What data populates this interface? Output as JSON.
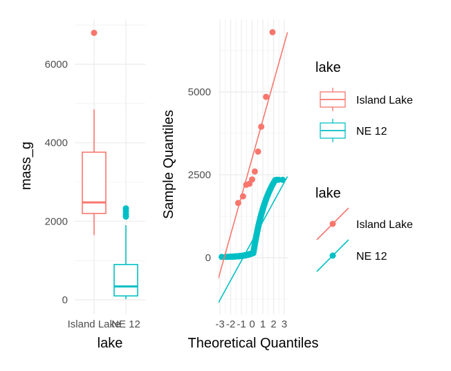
{
  "colors": {
    "island_lake": "#F8766D",
    "ne12": "#00BFC4",
    "grid": "#ebebeb"
  },
  "chart_data": [
    {
      "type": "box",
      "xlabel": "lake",
      "ylabel": "mass_g",
      "categories": [
        "Island Lake",
        "NE 12"
      ],
      "ylim": [
        -250,
        7100
      ],
      "yticks": [
        0,
        2000,
        4000,
        6000
      ],
      "yticklabels": [
        "0",
        "2000",
        "4000",
        "6000"
      ],
      "grid": true,
      "boxes": [
        {
          "category": "Island Lake",
          "min": 1650,
          "q1": 2200,
          "median": 2480,
          "q3": 3760,
          "max": 4850,
          "outliers": [
            6800
          ]
        },
        {
          "category": "NE 12",
          "min": 20,
          "q1": 100,
          "median": 340,
          "q3": 900,
          "max": 1900,
          "outliers": [
            2120,
            2180,
            2260,
            2330
          ]
        }
      ]
    },
    {
      "type": "scatter",
      "subtype": "qq",
      "xlabel": "Theoretical Quantiles",
      "ylabel": "Sample Quantiles",
      "xlim": [
        -3.3,
        3.3
      ],
      "ylim": [
        -1500,
        6900
      ],
      "xticks": [
        -3,
        -2,
        -1,
        0,
        1,
        2,
        3
      ],
      "xticklabels": [
        "-3",
        "-2",
        "-1",
        "0",
        "1",
        "2",
        "3"
      ],
      "yticks": [
        0,
        2500,
        5000
      ],
      "yticklabels": [
        "0",
        "2500",
        "5000"
      ],
      "grid": true,
      "series": [
        {
          "name": "Island Lake",
          "points": [
            [
              -1.3,
              1650
            ],
            [
              -0.85,
              1850
            ],
            [
              -0.55,
              2200
            ],
            [
              -0.25,
              2230
            ],
            [
              0.0,
              2360
            ],
            [
              0.25,
              2600
            ],
            [
              0.55,
              3200
            ],
            [
              0.85,
              3950
            ],
            [
              1.3,
              4850
            ],
            [
              1.9,
              6800
            ]
          ],
          "line": [
            [
              -3.3,
              -800
            ],
            [
              3.3,
              6800
            ]
          ]
        },
        {
          "name": "NE 12",
          "points": [],
          "line": [
            [
              -3.3,
              -1450
            ],
            [
              3.3,
              2450
            ]
          ]
        }
      ],
      "legends": [
        {
          "title": "lake",
          "position": "right",
          "entries": [
            "Island Lake",
            "NE 12"
          ]
        },
        {
          "title": "lake",
          "position": "right",
          "entries": [
            "Island Lake",
            "NE 12"
          ]
        }
      ]
    }
  ]
}
